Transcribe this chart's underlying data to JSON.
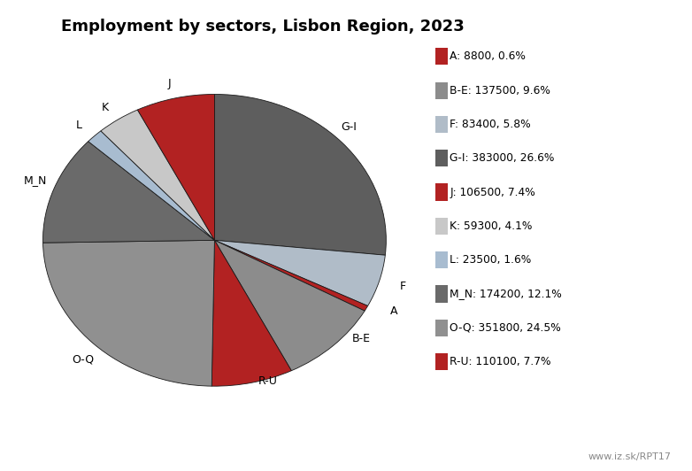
{
  "title": "Employment by sectors, Lisbon Region, 2023",
  "watermark": "www.iz.sk/RPT17",
  "sectors_ordered": [
    "G-I",
    "F",
    "A",
    "B-E",
    "R-U",
    "O-Q",
    "M_N",
    "L",
    "K",
    "J"
  ],
  "values_ordered": [
    383000,
    83400,
    8800,
    137500,
    110100,
    351800,
    174200,
    23500,
    59300,
    106500
  ],
  "colors_ordered": [
    "#5e5e5e",
    "#b0bcc8",
    "#b22222",
    "#8c8c8c",
    "#b22222",
    "#909090",
    "#6a6a6a",
    "#a8bcd0",
    "#c8c8c8",
    "#b22222"
  ],
  "legend_sectors": [
    "A",
    "B-E",
    "F",
    "G-I",
    "J",
    "K",
    "L",
    "M_N",
    "O-Q",
    "R-U"
  ],
  "legend_values": [
    8800,
    137500,
    83400,
    383000,
    106500,
    59300,
    23500,
    174200,
    351800,
    110100
  ],
  "legend_pcts": [
    0.6,
    9.6,
    5.8,
    26.6,
    7.4,
    4.1,
    1.6,
    12.1,
    24.5,
    7.7
  ],
  "legend_colors": [
    "#b22222",
    "#8c8c8c",
    "#b0bcc8",
    "#5e5e5e",
    "#b22222",
    "#c8c8c8",
    "#a8bcd0",
    "#6a6a6a",
    "#909090",
    "#b22222"
  ]
}
